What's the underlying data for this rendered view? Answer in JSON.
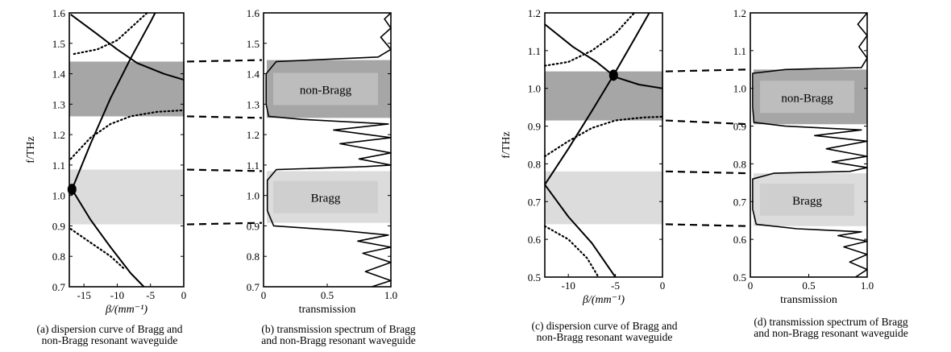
{
  "chart_data": [
    {
      "id": "a",
      "type": "line",
      "caption": "(a) dispersion curve of Bragg and\nnon-Bragg resonant waveguide",
      "ylabel": "f/THz",
      "xlabel": "β/(mm⁻¹)",
      "xlim": [
        -17.2,
        0
      ],
      "ylim": [
        0.7,
        1.6
      ],
      "x_ticks": [
        "-15",
        "-10",
        "-5",
        "0"
      ],
      "y_ticks": [
        "1.6",
        "1.5",
        "1.4",
        "1.3",
        "1.2",
        "1.1",
        "1.0",
        "0.9",
        "0.8",
        "0.7"
      ],
      "bands": [
        {
          "label": "non-Bragg",
          "y": [
            1.26,
            1.44
          ],
          "color": "#a6a6a6"
        },
        {
          "label": "Bragg",
          "y": [
            0.905,
            1.085
          ],
          "color": "#dcdcdc"
        }
      ],
      "marker": {
        "x": -16.8,
        "y": 1.02
      },
      "series": [
        {
          "style": "solid",
          "points": [
            [
              -16.8,
              1.02
            ],
            [
              -14,
              1.17
            ],
            [
              -11,
              1.32
            ],
            [
              -8,
              1.45
            ],
            [
              -5,
              1.57
            ],
            [
              -4.3,
              1.6
            ]
          ]
        },
        {
          "style": "solid",
          "points": [
            [
              -16.8,
              1.02
            ],
            [
              -14,
              0.92
            ],
            [
              -11,
              0.83
            ],
            [
              -8,
              0.745
            ],
            [
              -6,
              0.7
            ]
          ]
        },
        {
          "style": "solid",
          "points": [
            [
              -17,
              1.595
            ],
            [
              -13,
              1.53
            ],
            [
              -10,
              1.48
            ],
            [
              -7,
              1.435
            ],
            [
              -3,
              1.4
            ],
            [
              0,
              1.38
            ]
          ]
        },
        {
          "style": "dotted",
          "points": [
            [
              -17,
              1.12
            ],
            [
              -14,
              1.19
            ],
            [
              -11,
              1.235
            ],
            [
              -8,
              1.26
            ],
            [
              -4,
              1.275
            ],
            [
              0,
              1.28
            ]
          ]
        },
        {
          "style": "dotted",
          "points": [
            [
              -17,
              0.89
            ],
            [
              -14,
              0.845
            ],
            [
              -11,
              0.8
            ],
            [
              -9,
              0.76
            ]
          ]
        },
        {
          "style": "dotted",
          "points": [
            [
              -16.5,
              1.465
            ],
            [
              -13,
              1.48
            ],
            [
              -10,
              1.51
            ],
            [
              -7.5,
              1.56
            ],
            [
              -5.5,
              1.6
            ]
          ]
        }
      ]
    },
    {
      "id": "b",
      "type": "line",
      "caption": "(b) transmission spectrum of Bragg\nand non-Bragg resonant waveguide",
      "xlabel": "transmission",
      "xlim": [
        0,
        1
      ],
      "ylim": [
        0.7,
        1.6
      ],
      "x_ticks": [
        "0",
        "0.5",
        "1.0"
      ],
      "y_ticks": [
        "1.6",
        "1.5",
        "1.4",
        "1.3",
        "1.2",
        "1.1",
        "1.0",
        "0.9",
        "0.8",
        "0.7"
      ],
      "bands": [
        {
          "label": "non-Bragg",
          "y": [
            1.255,
            1.445
          ],
          "color": "#a6a6a6"
        },
        {
          "label": "Bragg",
          "y": [
            0.91,
            1.08
          ],
          "color": "#dcdcdc"
        }
      ],
      "series": [
        {
          "style": "solid",
          "points": [
            [
              0.85,
              0.7
            ],
            [
              1.0,
              0.72
            ],
            [
              0.8,
              0.75
            ],
            [
              1.0,
              0.78
            ],
            [
              0.78,
              0.81
            ],
            [
              1.0,
              0.83
            ],
            [
              0.74,
              0.85
            ],
            [
              0.98,
              0.87
            ],
            [
              0.6,
              0.885
            ],
            [
              0.08,
              0.9
            ],
            [
              0.03,
              0.95
            ],
            [
              0.03,
              1.0
            ],
            [
              0.03,
              1.05
            ],
            [
              0.1,
              1.085
            ],
            [
              0.8,
              1.095
            ],
            [
              1.0,
              1.1
            ],
            [
              0.75,
              1.12
            ],
            [
              1.0,
              1.14
            ],
            [
              0.6,
              1.17
            ],
            [
              1.0,
              1.19
            ],
            [
              0.55,
              1.215
            ],
            [
              0.98,
              1.235
            ],
            [
              0.3,
              1.25
            ],
            [
              0.04,
              1.26
            ],
            [
              0.02,
              1.3
            ],
            [
              0.02,
              1.35
            ],
            [
              0.02,
              1.4
            ],
            [
              0.1,
              1.44
            ],
            [
              0.9,
              1.455
            ],
            [
              1.0,
              1.48
            ],
            [
              0.92,
              1.52
            ],
            [
              1.0,
              1.55
            ],
            [
              0.95,
              1.58
            ],
            [
              1.0,
              1.6
            ]
          ]
        }
      ]
    },
    {
      "id": "c",
      "type": "line",
      "caption": "(c) dispersion curve of Bragg and\nnon-Bragg resonant waveguide",
      "ylabel": "f/THz",
      "xlabel": "β/(mm⁻¹)",
      "xlim": [
        -12.5,
        0
      ],
      "ylim": [
        0.5,
        1.2
      ],
      "x_ticks": [
        "-10",
        "-5",
        "0"
      ],
      "y_ticks": [
        "1.2",
        "1.1",
        "1.0",
        "0.9",
        "0.8",
        "0.7",
        "0.6",
        "0.5"
      ],
      "bands": [
        {
          "label": "non-Bragg",
          "y": [
            0.915,
            1.045
          ],
          "color": "#a6a6a6"
        },
        {
          "label": "Bragg",
          "y": [
            0.64,
            0.78
          ],
          "color": "#dcdcdc"
        }
      ],
      "marker": {
        "x": -5.2,
        "y": 1.035
      },
      "series": [
        {
          "style": "solid",
          "points": [
            [
              -12.5,
              0.745
            ],
            [
              -10,
              0.84
            ],
            [
              -7.5,
              0.94
            ],
            [
              -5.2,
              1.035
            ],
            [
              -3,
              1.13
            ],
            [
              -1.4,
              1.2
            ]
          ]
        },
        {
          "style": "solid",
          "points": [
            [
              -12.5,
              0.745
            ],
            [
              -10,
              0.66
            ],
            [
              -7.5,
              0.59
            ],
            [
              -5,
              0.5
            ]
          ]
        },
        {
          "style": "solid",
          "points": [
            [
              -12.5,
              1.17
            ],
            [
              -9.5,
              1.11
            ],
            [
              -7,
              1.07
            ],
            [
              -5,
              1.03
            ],
            [
              -2.5,
              1.01
            ],
            [
              0,
              1.0
            ]
          ]
        },
        {
          "style": "dotted",
          "points": [
            [
              -12.5,
              0.82
            ],
            [
              -10,
              0.86
            ],
            [
              -7.5,
              0.895
            ],
            [
              -5,
              0.915
            ],
            [
              -2,
              0.923
            ],
            [
              0,
              0.925
            ]
          ]
        },
        {
          "style": "dotted",
          "points": [
            [
              -12.5,
              0.635
            ],
            [
              -10,
              0.6
            ],
            [
              -8,
              0.55
            ],
            [
              -6.8,
              0.5
            ]
          ]
        },
        {
          "style": "dotted",
          "points": [
            [
              -12.5,
              1.06
            ],
            [
              -10,
              1.07
            ],
            [
              -7.5,
              1.1
            ],
            [
              -5,
              1.145
            ],
            [
              -3,
              1.2
            ]
          ]
        }
      ]
    },
    {
      "id": "d",
      "type": "line",
      "caption": "(d) transmission spectrum of Bragg\nand non-Bragg resonant waveguide",
      "xlabel": "transmission",
      "xlim": [
        0,
        1
      ],
      "ylim": [
        0.5,
        1.2
      ],
      "x_ticks": [
        "0",
        "0.5",
        "1.0"
      ],
      "y_ticks": [
        "1.2",
        "1.1",
        "1.0",
        "0.9",
        "0.8",
        "0.7",
        "0.6",
        "0.5"
      ],
      "bands": [
        {
          "label": "non-Bragg",
          "y": [
            0.905,
            1.05
          ],
          "color": "#a6a6a6"
        },
        {
          "label": "Bragg",
          "y": [
            0.635,
            0.775
          ],
          "color": "#dcdcdc"
        }
      ],
      "series": [
        {
          "style": "solid",
          "points": [
            [
              0.9,
              0.5
            ],
            [
              1.0,
              0.52
            ],
            [
              0.85,
              0.54
            ],
            [
              1.0,
              0.56
            ],
            [
              0.8,
              0.58
            ],
            [
              1.0,
              0.595
            ],
            [
              0.75,
              0.61
            ],
            [
              0.95,
              0.62
            ],
            [
              0.4,
              0.628
            ],
            [
              0.05,
              0.64
            ],
            [
              0.02,
              0.68
            ],
            [
              0.02,
              0.72
            ],
            [
              0.02,
              0.76
            ],
            [
              0.2,
              0.775
            ],
            [
              0.85,
              0.78
            ],
            [
              1.0,
              0.79
            ],
            [
              0.7,
              0.805
            ],
            [
              1.0,
              0.82
            ],
            [
              0.65,
              0.84
            ],
            [
              1.0,
              0.86
            ],
            [
              0.55,
              0.875
            ],
            [
              0.95,
              0.89
            ],
            [
              0.3,
              0.9
            ],
            [
              0.03,
              0.91
            ],
            [
              0.02,
              0.95
            ],
            [
              0.02,
              1.0
            ],
            [
              0.02,
              1.04
            ],
            [
              0.3,
              1.05
            ],
            [
              0.95,
              1.055
            ],
            [
              1.0,
              1.08
            ],
            [
              0.93,
              1.11
            ],
            [
              1.0,
              1.14
            ],
            [
              0.92,
              1.17
            ],
            [
              1.0,
              1.2
            ]
          ]
        }
      ]
    }
  ]
}
